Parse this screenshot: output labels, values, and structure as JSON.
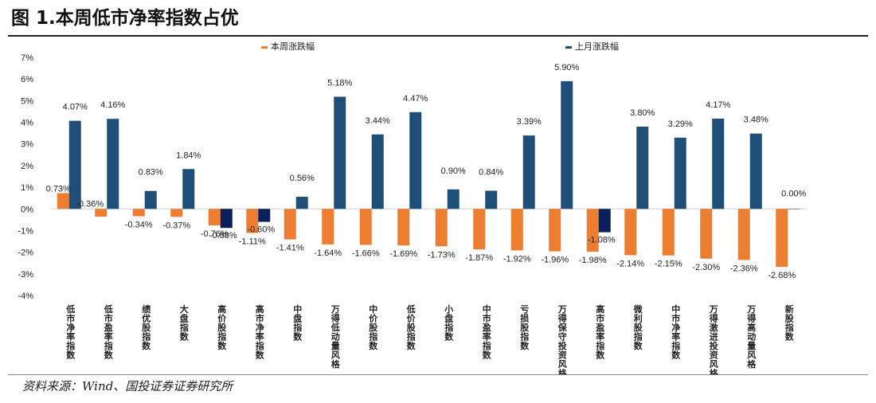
{
  "title": "图 1.本周低市净率指数占优",
  "source": "资料来源：Wind、国投证券证券研究所",
  "chart_data": {
    "type": "bar",
    "ylim": [
      -4,
      7
    ],
    "yticks": [
      "7%",
      "6%",
      "5%",
      "4%",
      "3%",
      "2%",
      "1%",
      "0%",
      "-1%",
      "-2%",
      "-3%",
      "-4%"
    ],
    "ytick_values": [
      7,
      6,
      5,
      4,
      3,
      2,
      1,
      0,
      -1,
      -2,
      -3,
      -4
    ],
    "grid": false,
    "legend_position": "top-center",
    "categories": [
      "低市净率指数",
      "低市盈率指数",
      "绩优股指数",
      "大盘指数",
      "高价股指数",
      "高市净率指数",
      "中盘指数",
      "万得低动量风格",
      "中价股指数",
      "低价股指数",
      "小盘指数",
      "中市盈率指数",
      "亏损股指数",
      "万得保守投资风格",
      "高市盈率指数",
      "微利股指数",
      "中市净率指数",
      "万得激进投资风格",
      "万得高动量风格",
      "新股指数"
    ],
    "series": [
      {
        "name": "本周涨跌幅",
        "color": "#ED7D31",
        "values": [
          0.73,
          -0.36,
          -0.34,
          -0.37,
          -0.76,
          -1.11,
          -1.41,
          -1.64,
          -1.66,
          -1.69,
          -1.73,
          -1.87,
          -1.92,
          -1.96,
          -1.98,
          -2.14,
          -2.15,
          -2.3,
          -2.36,
          -2.68
        ],
        "labels": [
          "0.73%",
          "-0.36%",
          "-0.34%",
          "-0.37%",
          "-0.76%",
          "-1.11%",
          "-1.41%",
          "-1.64%",
          "-1.66%",
          "-1.69%",
          "-1.73%",
          "-1.87%",
          "-1.92%",
          "-1.96%",
          "-1.98%",
          "-2.14%",
          "-2.15%",
          "-2.30%",
          "-2.36%",
          "-2.68%"
        ]
      },
      {
        "name": "上月涨跌幅",
        "color": "#1F4E79",
        "negative_color": "#0A1F5C",
        "values": [
          4.07,
          4.16,
          0.83,
          1.84,
          -0.88,
          -0.6,
          0.56,
          5.18,
          3.44,
          4.47,
          0.9,
          0.84,
          3.39,
          5.9,
          -1.08,
          3.8,
          3.29,
          4.17,
          3.48,
          0.0
        ],
        "labels": [
          "4.07%",
          "4.16%",
          "0.83%",
          "1.84%",
          "-0.88%",
          "-0.60%",
          "0.56%",
          "5.18%",
          "3.44%",
          "4.47%",
          "0.90%",
          "0.84%",
          "3.39%",
          "5.90%",
          "-1.08%",
          "3.80%",
          "3.29%",
          "4.17%",
          "3.48%",
          "0.00%"
        ]
      }
    ]
  }
}
